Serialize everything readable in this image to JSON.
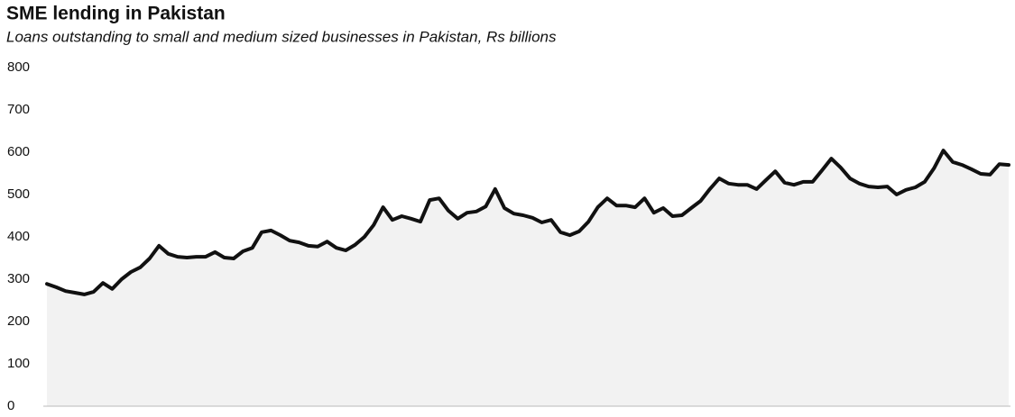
{
  "chart_data": {
    "type": "area",
    "title": "SME lending in Pakistan",
    "subtitle": "Loans outstanding to small and medium sized businesses in Pakistan, Rs billions",
    "categories": [
      null,
      null,
      null,
      null,
      null,
      null,
      null,
      null,
      null,
      null,
      null,
      null,
      null,
      null,
      null,
      null,
      null,
      null,
      null,
      null,
      null,
      null,
      null,
      null,
      null,
      null,
      null,
      null,
      null,
      null,
      null,
      null,
      null,
      null,
      null,
      null,
      null,
      null,
      null,
      null,
      null,
      null,
      null,
      null,
      null,
      null,
      null,
      null,
      null,
      null,
      null,
      null,
      null,
      null,
      null,
      null,
      null,
      null,
      null,
      null,
      null,
      null,
      null,
      null,
      null,
      null,
      null,
      null,
      null,
      null,
      null,
      null,
      null,
      null,
      null,
      null,
      null,
      null,
      null,
      null,
      null,
      null,
      null,
      null,
      null,
      null,
      null,
      null,
      null,
      null,
      null,
      null,
      null,
      null,
      null,
      null,
      null,
      null,
      null,
      null,
      null,
      null,
      null,
      null
    ],
    "values": [
      289,
      281,
      272,
      268,
      264,
      270,
      291,
      277,
      300,
      317,
      328,
      349,
      379,
      360,
      353,
      351,
      353,
      353,
      364,
      351,
      349,
      366,
      374,
      411,
      415,
      404,
      391,
      387,
      379,
      377,
      389,
      374,
      368,
      381,
      400,
      428,
      470,
      440,
      449,
      443,
      436,
      487,
      491,
      462,
      443,
      457,
      460,
      472,
      513,
      468,
      455,
      451,
      445,
      434,
      440,
      411,
      404,
      413,
      436,
      470,
      491,
      474,
      474,
      470,
      491,
      457,
      468,
      449,
      451,
      468,
      485,
      513,
      538,
      526,
      523,
      523,
      513,
      534,
      555,
      528,
      523,
      530,
      530,
      557,
      585,
      564,
      538,
      526,
      519,
      517,
      519,
      500,
      511,
      517,
      530,
      562,
      604,
      577,
      570,
      560,
      549,
      547,
      572,
      570
    ],
    "color": "#111111",
    "fill": "#f2f2f2",
    "ylim": [
      0,
      800
    ],
    "yticks": [
      0,
      100,
      200,
      300,
      400,
      500,
      600,
      700,
      800
    ],
    "grid": false
  }
}
